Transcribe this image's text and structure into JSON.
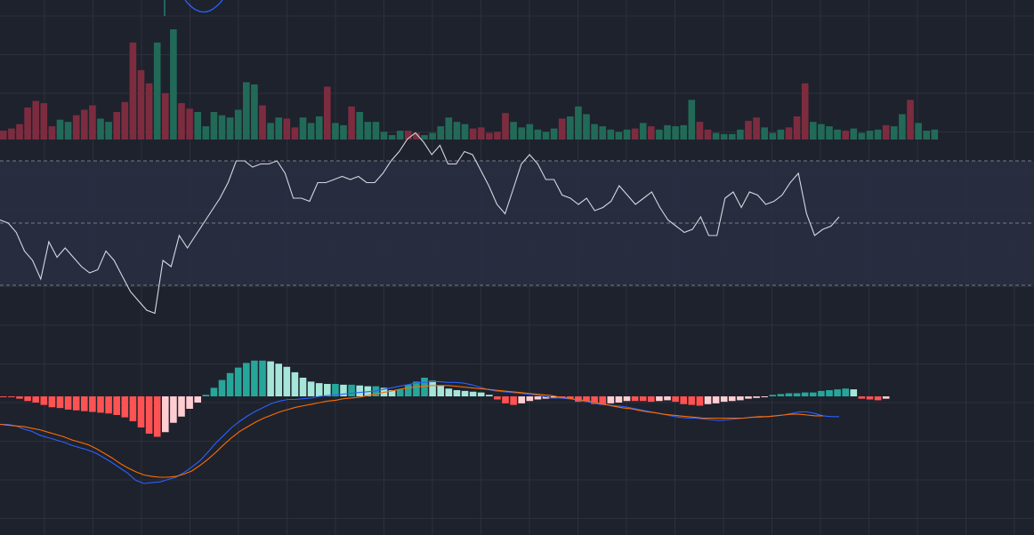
{
  "theme": {
    "background": "#1e222d",
    "grid": "#2b303c",
    "rsi_band": "#2a2e43",
    "up": "#26a69a",
    "down": "#ef5350",
    "volume_up": "#226a58",
    "volume_down": "#7d2c3f",
    "hist_up_strong": "#26a69a",
    "hist_up_weak": "#a5e6d9",
    "hist_down_strong": "#ff5252",
    "hist_down_weak": "#ffcdd2",
    "rsi_line": "#d5d8df",
    "macd_line": "#2962ff",
    "signal_line": "#ff6d00",
    "dashed": "#787b86"
  },
  "chart_data": [
    {
      "type": "bar",
      "panel": "volume",
      "grid": true,
      "ylim": [
        0,
        100
      ],
      "values": [
        8,
        10,
        14,
        29,
        35,
        33,
        12,
        18,
        16,
        22,
        27,
        31,
        19,
        16,
        25,
        34,
        88,
        63,
        51,
        88,
        42,
        100,
        33,
        28,
        25,
        12,
        25,
        22,
        20,
        27,
        52,
        50,
        31,
        15,
        20,
        19,
        11,
        20,
        15,
        21,
        48,
        15,
        13,
        30,
        25,
        16,
        16,
        7,
        4,
        8,
        8,
        6,
        4,
        6,
        12,
        20,
        16,
        14,
        10,
        11,
        6,
        7,
        24,
        16,
        11,
        14,
        9,
        7,
        10,
        19,
        21,
        30,
        23,
        14,
        12,
        9,
        7,
        9,
        10,
        15,
        12,
        9,
        13,
        12,
        13,
        36,
        16,
        9,
        6,
        5,
        5,
        9,
        17,
        20,
        11,
        6,
        9,
        11,
        21,
        51,
        16,
        14,
        12,
        9,
        8,
        10,
        6,
        8,
        9,
        13,
        12,
        23,
        36,
        15,
        8,
        9
      ],
      "up": [
        0,
        0,
        0,
        0,
        0,
        0,
        0,
        1,
        1,
        0,
        0,
        0,
        1,
        1,
        0,
        0,
        0,
        0,
        0,
        1,
        0,
        1,
        0,
        0,
        1,
        1,
        1,
        1,
        1,
        1,
        1,
        1,
        0,
        1,
        1,
        0,
        0,
        1,
        1,
        1,
        0,
        1,
        1,
        0,
        1,
        1,
        1,
        1,
        1,
        1,
        0,
        0,
        1,
        1,
        1,
        1,
        1,
        1,
        0,
        0,
        0,
        0,
        0,
        1,
        1,
        1,
        1,
        1,
        1,
        0,
        1,
        1,
        1,
        1,
        1,
        1,
        1,
        1,
        0,
        1,
        0,
        1,
        1,
        1,
        1,
        1,
        0,
        0,
        1,
        1,
        1,
        1,
        0,
        0,
        1,
        1,
        1,
        0,
        0,
        0,
        1,
        1,
        1,
        1,
        0,
        1,
        1,
        1,
        1,
        0,
        1,
        1,
        0,
        1,
        1,
        1
      ]
    },
    {
      "type": "line",
      "panel": "rsi",
      "grid": true,
      "ylim": [
        20,
        80
      ],
      "bands": [
        70,
        50,
        30
      ],
      "values": [
        51,
        50,
        47,
        41,
        38,
        32,
        44,
        39,
        42,
        39,
        36,
        34,
        35,
        41,
        38,
        33,
        28,
        25,
        22,
        21,
        38,
        36,
        46,
        42,
        46,
        50,
        54,
        58,
        63,
        70,
        70,
        68,
        69,
        69,
        70,
        66,
        58,
        58,
        57,
        63,
        63,
        64,
        65,
        64,
        65,
        63,
        63,
        66,
        70,
        73,
        77,
        79,
        76,
        72,
        75,
        69,
        69,
        73,
        72,
        67,
        62,
        56,
        53,
        61,
        69,
        72,
        69,
        64,
        64,
        59,
        58,
        56,
        58,
        54,
        55,
        57,
        62,
        59,
        56,
        58,
        60,
        55,
        51,
        49,
        47,
        48,
        52,
        46,
        46,
        58,
        60,
        55,
        60,
        59,
        56,
        57,
        59,
        63,
        66,
        53,
        46,
        48,
        49,
        52
      ],
      "start": 0,
      "end": 116
    },
    {
      "type": "line",
      "panel": "macd",
      "grid": true,
      "ylim": [
        -6,
        2.5
      ],
      "macd": [
        -1.8,
        -1.8,
        -1.9,
        -2.1,
        -2.25,
        -2.5,
        -2.65,
        -2.8,
        -2.95,
        -3.15,
        -3.3,
        -3.45,
        -3.65,
        -3.95,
        -4.25,
        -4.6,
        -4.95,
        -5.4,
        -5.6,
        -5.55,
        -5.5,
        -5.35,
        -5.2,
        -4.9,
        -4.55,
        -4.15,
        -3.6,
        -3.0,
        -2.5,
        -2.0,
        -1.6,
        -1.25,
        -0.95,
        -0.7,
        -0.45,
        -0.3,
        -0.2,
        -0.2,
        -0.15,
        -0.1,
        0.0,
        0.05,
        0.1,
        0.15,
        0.2,
        0.25,
        0.3,
        0.35,
        0.45,
        0.55,
        0.65,
        0.75,
        0.85,
        0.9,
        0.95,
        0.95,
        0.9,
        0.9,
        0.85,
        0.75,
        0.6,
        0.45,
        0.35,
        0.3,
        0.25,
        0.2,
        0.15,
        0.1,
        0.0,
        -0.1,
        -0.1,
        -0.15,
        -0.2,
        -0.3,
        -0.4,
        -0.5,
        -0.55,
        -0.6,
        -0.65,
        -0.75,
        -0.85,
        -0.95,
        -1.05,
        -1.15,
        -1.25,
        -1.35,
        -1.4,
        -1.4,
        -1.45,
        -1.5,
        -1.55,
        -1.5,
        -1.45,
        -1.4,
        -1.35,
        -1.35,
        -1.3,
        -1.25,
        -1.2,
        -1.1,
        -1.0,
        -1.0,
        -1.1,
        -1.25,
        -1.3,
        -1.3
      ],
      "signal": [
        -1.8,
        -1.85,
        -1.9,
        -1.95,
        -2.05,
        -2.15,
        -2.3,
        -2.45,
        -2.6,
        -2.8,
        -2.95,
        -3.1,
        -3.35,
        -3.65,
        -3.95,
        -4.3,
        -4.6,
        -4.85,
        -5.05,
        -5.15,
        -5.2,
        -5.2,
        -5.15,
        -5.0,
        -4.8,
        -4.45,
        -4.05,
        -3.6,
        -3.1,
        -2.65,
        -2.25,
        -1.95,
        -1.65,
        -1.4,
        -1.2,
        -1.0,
        -0.85,
        -0.7,
        -0.6,
        -0.5,
        -0.4,
        -0.3,
        -0.25,
        -0.15,
        -0.1,
        -0.05,
        0.05,
        0.15,
        0.25,
        0.35,
        0.45,
        0.55,
        0.6,
        0.65,
        0.7,
        0.7,
        0.7,
        0.65,
        0.6,
        0.55,
        0.5,
        0.45,
        0.4,
        0.35,
        0.3,
        0.25,
        0.2,
        0.15,
        0.1,
        0.05,
        -0.05,
        -0.1,
        -0.2,
        -0.25,
        -0.35,
        -0.45,
        -0.55,
        -0.65,
        -0.75,
        -0.8,
        -0.9,
        -1.0,
        -1.05,
        -1.15,
        -1.2,
        -1.25,
        -1.3,
        -1.35,
        -1.4,
        -1.4,
        -1.4,
        -1.4,
        -1.4,
        -1.4,
        -1.35,
        -1.3,
        -1.3,
        -1.25,
        -1.2,
        -1.15,
        -1.15,
        -1.2,
        -1.25,
        -1.25
      ],
      "histogram": [
        -0.05,
        -0.05,
        -0.15,
        -0.3,
        -0.4,
        -0.55,
        -0.7,
        -0.75,
        -0.85,
        -0.9,
        -0.95,
        -1.0,
        -1.05,
        -1.1,
        -1.2,
        -1.35,
        -1.6,
        -2.0,
        -2.4,
        -2.6,
        -2.3,
        -1.7,
        -1.3,
        -0.8,
        -0.4,
        0.1,
        0.55,
        1.05,
        1.5,
        1.85,
        2.15,
        2.3,
        2.3,
        2.25,
        2.1,
        1.9,
        1.55,
        1.2,
        0.95,
        0.85,
        0.8,
        0.8,
        0.75,
        0.75,
        0.7,
        0.65,
        0.65,
        0.55,
        0.4,
        0.45,
        0.75,
        0.95,
        1.2,
        1.0,
        0.7,
        0.5,
        0.4,
        0.35,
        0.3,
        0.25,
        0.1,
        -0.2,
        -0.45,
        -0.55,
        -0.45,
        -0.3,
        -0.2,
        -0.15,
        -0.1,
        -0.1,
        -0.15,
        -0.35,
        -0.35,
        -0.5,
        -0.55,
        -0.45,
        -0.4,
        -0.3,
        -0.3,
        -0.3,
        -0.35,
        -0.3,
        -0.25,
        -0.35,
        -0.5,
        -0.55,
        -0.6,
        -0.5,
        -0.45,
        -0.35,
        -0.3,
        -0.25,
        -0.15,
        -0.1,
        -0.05,
        0.1,
        0.15,
        0.2,
        0.2,
        0.25,
        0.25,
        0.35,
        0.4,
        0.45,
        0.5,
        0.45,
        -0.15,
        -0.2,
        -0.25,
        -0.15
      ]
    }
  ]
}
